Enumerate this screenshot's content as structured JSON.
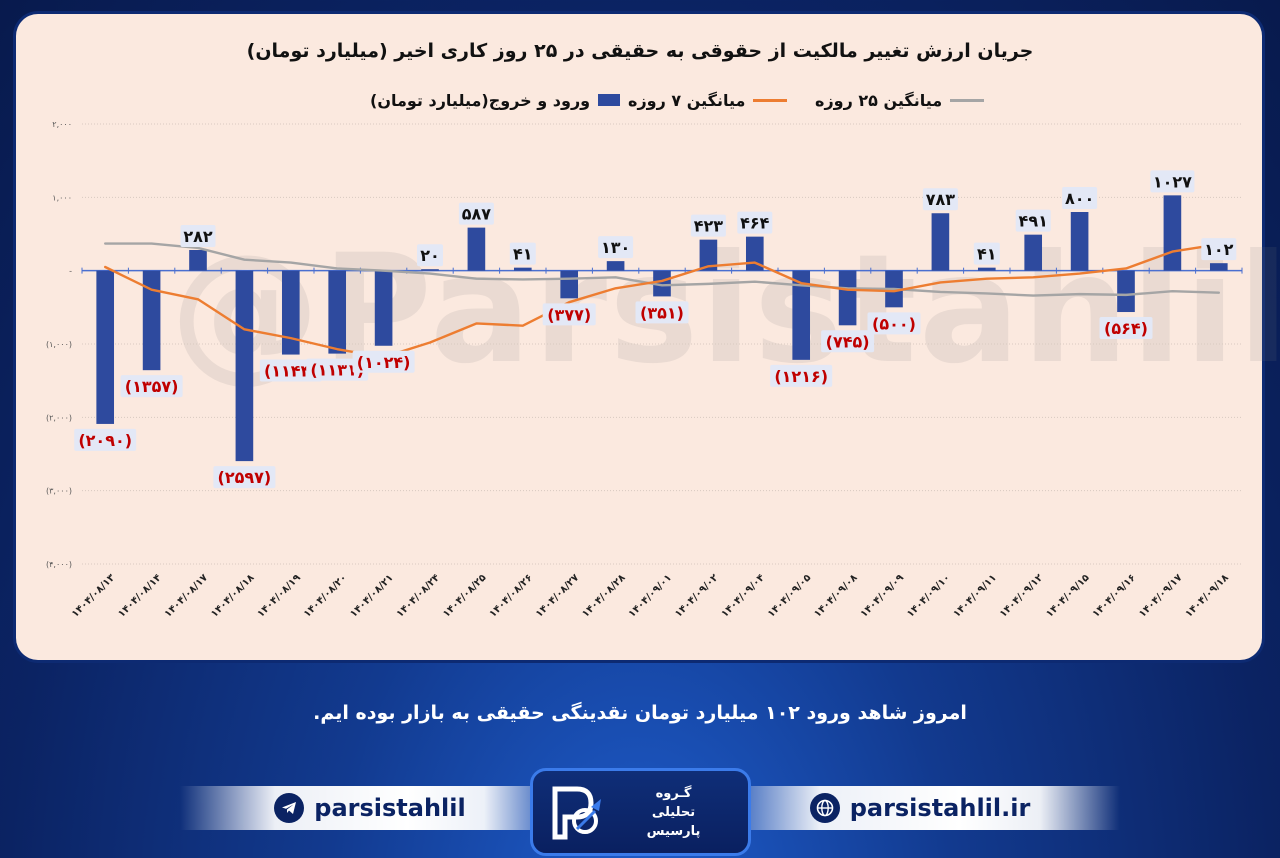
{
  "chart_data": {
    "type": "bar",
    "title": "جریان ارزش تغییر مالکیت از حقوقی به حقیقی در ۲۵ روز کاری اخیر (میلیارد تومان)",
    "categories": [
      "۱۴۰۴/۰۸/۱۳",
      "۱۴۰۴/۰۸/۱۴",
      "۱۴۰۴/۰۸/۱۷",
      "۱۴۰۴/۰۸/۱۸",
      "۱۴۰۴/۰۸/۱۹",
      "۱۴۰۴/۰۸/۲۰",
      "۱۴۰۴/۰۸/۲۱",
      "۱۴۰۴/۰۸/۲۴",
      "۱۴۰۴/۰۸/۲۵",
      "۱۴۰۴/۰۸/۲۶",
      "۱۴۰۴/۰۸/۲۷",
      "۱۴۰۴/۰۸/۲۸",
      "۱۴۰۴/۰۹/۰۱",
      "۱۴۰۴/۰۹/۰۲",
      "۱۴۰۴/۰۹/۰۴",
      "۱۴۰۴/۰۹/۰۵",
      "۱۴۰۴/۰۹/۰۸",
      "۱۴۰۴/۰۹/۰۹",
      "۱۴۰۴/۰۹/۱۰",
      "۱۴۰۴/۰۹/۱۱",
      "۱۴۰۴/۰۹/۱۲",
      "۱۴۰۴/۰۹/۱۵",
      "۱۴۰۴/۰۹/۱۶",
      "۱۴۰۴/۰۹/۱۷",
      "۱۴۰۴/۰۹/۱۸"
    ],
    "series": [
      {
        "name": "ورود و خروج(میلیارد تومان)",
        "kind": "bar",
        "color": "#2e4a9e",
        "values": [
          -2090,
          -1357,
          282,
          -2597,
          -1144,
          -1131,
          -1024,
          20,
          587,
          41,
          -377,
          130,
          -351,
          423,
          464,
          -1216,
          -745,
          -500,
          783,
          41,
          491,
          800,
          -564,
          1027,
          102
        ],
        "labels": [
          "(۲۰۹۰)",
          "(۱۳۵۷)",
          "۲۸۲",
          "(۲۵۹۷)",
          "(۱۱۴۴)",
          "(۱۱۳۱)",
          "(۱۰۲۴)",
          "۲۰",
          "۵۸۷",
          "۴۱",
          "(۳۷۷)",
          "۱۳۰",
          "(۳۵۱)",
          "۴۲۳",
          "۴۶۴",
          "(۱۲۱۶)",
          "(۷۴۵)",
          "(۵۰۰)",
          "۷۸۳",
          "۴۱",
          "۴۹۱",
          "۸۰۰",
          "(۵۶۴)",
          "۱۰۲۷",
          "۱۰۲"
        ]
      },
      {
        "name": "میانگین ۷ روزه",
        "kind": "line",
        "color": "#ed7d31",
        "values": [
          50,
          -260,
          -390,
          -800,
          -920,
          -1070,
          -1180,
          -980,
          -720,
          -750,
          -430,
          -240,
          -140,
          60,
          110,
          -170,
          -260,
          -280,
          -160,
          -110,
          -90,
          -40,
          30,
          260,
          360
        ]
      },
      {
        "name": "میانگین ۲۵ روزه",
        "kind": "line",
        "color": "#a5a5a5",
        "values": [
          370,
          370,
          310,
          150,
          110,
          30,
          0,
          -40,
          -110,
          -120,
          -110,
          -90,
          -200,
          -180,
          -150,
          -200,
          -240,
          -250,
          -290,
          -310,
          -340,
          -320,
          -330,
          -280,
          -300
        ]
      }
    ],
    "ylim": [
      -4000,
      2000
    ],
    "yticks": [
      2000,
      1000,
      0,
      -1000,
      -2000,
      -3000,
      -4000
    ],
    "ytick_labels": [
      "۲,۰۰۰",
      "۱,۰۰۰",
      "-",
      "(۱,۰۰۰)",
      "(۲,۰۰۰)",
      "(۳,۰۰۰)",
      "(۴,۰۰۰)"
    ],
    "grid": true,
    "legend_position": "top"
  },
  "watermark": "@Parsistahlil",
  "footer_text": "امروز شاهد ورود ۱۰۲ میلیارد تومان نقدینگی حقیقی به بازار بوده ایم.",
  "social": {
    "telegram_handle": "parsistahlil",
    "website": "parsistahlil.ir",
    "telegram_icon": "telegram-icon",
    "web_icon": "globe-icon"
  },
  "logo": {
    "line1": "گـروه",
    "line2": "تحلیلی",
    "line3": "پارسیس"
  },
  "colors": {
    "background": "#0b2363",
    "card": "#fbe9df",
    "negative_label": "#c00000",
    "positive_label": "#111111"
  }
}
